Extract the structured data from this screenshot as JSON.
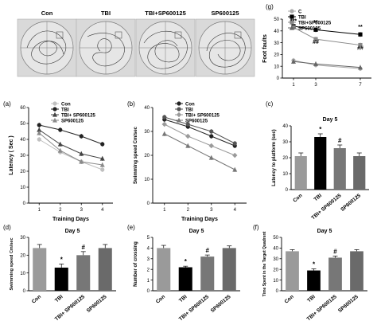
{
  "track_labels": [
    "Con",
    "TBI",
    "TBI+SP600125",
    "SP600125"
  ],
  "chart_data": [
    {
      "panel": "(a)",
      "type": "line",
      "ylabel": "Latency ( Sec )",
      "xlabel": "Training Days",
      "x": [
        1,
        2,
        3,
        4
      ],
      "xlim": [
        0.5,
        4.5
      ],
      "ylim": [
        0,
        60
      ],
      "yticks": [
        0,
        10,
        20,
        30,
        40,
        50,
        60
      ],
      "legend_position": "top-right",
      "series": [
        {
          "name": "Con",
          "values": [
            40,
            32,
            26,
            21
          ],
          "color": "#c0c0c0",
          "marker": "circle"
        },
        {
          "name": "TBI",
          "values": [
            49,
            46,
            42,
            37
          ],
          "color": "#222222",
          "marker": "circle"
        },
        {
          "name": "TBI+ SP600125",
          "values": [
            46,
            37,
            31,
            28
          ],
          "color": "#444444",
          "marker": "triangle"
        },
        {
          "name": "SP600125",
          "values": [
            44,
            33,
            26,
            24
          ],
          "color": "#8a8a8a",
          "marker": "triangle"
        }
      ]
    },
    {
      "panel": "(b)",
      "type": "line",
      "ylabel": "Swimming speed Cm/sec",
      "xlabel": "Training Days",
      "x": [
        1,
        2,
        3,
        4
      ],
      "xlim": [
        0.5,
        4.5
      ],
      "ylim": [
        0,
        40
      ],
      "yticks": [
        0,
        10,
        20,
        30,
        40
      ],
      "legend_position": "top-right",
      "series": [
        {
          "name": "Con",
          "values": [
            35,
            32,
            28,
            24
          ],
          "color": "#222222",
          "marker": "circle"
        },
        {
          "name": "TBI",
          "values": [
            36,
            33,
            30,
            25
          ],
          "color": "#555555",
          "marker": "circle"
        },
        {
          "name": "TBI+ SP600125",
          "values": [
            33,
            28,
            24,
            20
          ],
          "color": "#9a9a9a",
          "marker": "diamond"
        },
        {
          "name": "SP600125",
          "values": [
            29,
            24,
            19,
            14
          ],
          "color": "#777777",
          "marker": "triangle"
        }
      ]
    },
    {
      "panel": "(c)",
      "type": "bar",
      "title": "Day 5",
      "ylabel": "Latency to platform (sec)",
      "categories": [
        "Con",
        "TBI",
        "TBI+ SP600125",
        "SP600125"
      ],
      "values": [
        21,
        33,
        26,
        21
      ],
      "errors": [
        2,
        2,
        2,
        2
      ],
      "colors": [
        "#9a9a9a",
        "#000000",
        "#777777",
        "#6a6a6a"
      ],
      "annotations": [
        "",
        "*",
        "#",
        ""
      ],
      "ylim": [
        0,
        40
      ],
      "yticks": [
        0,
        10,
        20,
        30,
        40
      ]
    },
    {
      "panel": "(d)",
      "type": "bar",
      "title": "Day 5",
      "ylabel": "Swimming speed Cm/sec",
      "categories": [
        "Con",
        "TBI",
        "TBI+ SP600125",
        "SP600125"
      ],
      "values": [
        24,
        13,
        20,
        24
      ],
      "errors": [
        2,
        2,
        2,
        2
      ],
      "colors": [
        "#9a9a9a",
        "#000000",
        "#777777",
        "#6a6a6a"
      ],
      "annotations": [
        "",
        "*",
        "#",
        ""
      ],
      "ylim": [
        0,
        30
      ],
      "yticks": [
        0,
        10,
        20,
        30
      ]
    },
    {
      "panel": "(e)",
      "type": "bar",
      "title": "Day 5",
      "ylabel": "Number of crossing",
      "categories": [
        "Con",
        "TBI",
        "TBI+ SP600125",
        "SP600125"
      ],
      "values": [
        4.0,
        2.2,
        3.2,
        4.0
      ],
      "errors": [
        0.25,
        0.1,
        0.15,
        0.2
      ],
      "colors": [
        "#9a9a9a",
        "#000000",
        "#777777",
        "#6a6a6a"
      ],
      "annotations": [
        "",
        "*",
        "#",
        ""
      ],
      "ylim": [
        0,
        5
      ],
      "yticks": [
        0,
        1,
        2,
        3,
        4,
        5
      ]
    },
    {
      "panel": "(f)",
      "type": "bar",
      "title": "Day 5",
      "ylabel": "Time Spent in the Target Quadrent",
      "categories": [
        "Con",
        "TBI",
        "TBI+ SP600125",
        "SP600125"
      ],
      "values": [
        37,
        19,
        31,
        37
      ],
      "errors": [
        1.5,
        1.5,
        1.5,
        1.5
      ],
      "colors": [
        "#9a9a9a",
        "#000000",
        "#777777",
        "#6a6a6a"
      ],
      "annotations": [
        "",
        "*",
        "#",
        ""
      ],
      "ylim": [
        0,
        50
      ],
      "yticks": [
        0,
        10,
        20,
        30,
        40,
        50
      ]
    },
    {
      "panel": "(g)",
      "type": "line",
      "ylabel": "Foot faults",
      "x": [
        1,
        3,
        7
      ],
      "xlim": [
        0,
        8
      ],
      "ylim": [
        0,
        50
      ],
      "yticks": [
        0,
        10,
        20,
        30,
        40,
        50
      ],
      "legend_position": "top-left",
      "series": [
        {
          "name": "C",
          "values": [
            15,
            11,
            8
          ],
          "color": "#aaaaaa",
          "marker": "circle"
        },
        {
          "name": "TBI",
          "values": [
            44,
            41,
            37
          ],
          "color": "#000000",
          "marker": "square"
        },
        {
          "name": "TBI+SP600125",
          "values": [
            43,
            33,
            28
          ],
          "color": "#888888",
          "marker": "square"
        },
        {
          "name": "SP600125",
          "values": [
            14,
            12,
            9
          ],
          "color": "#666666",
          "marker": "triangle"
        }
      ],
      "annotations": [
        {
          "x": 1,
          "text": "***"
        },
        {
          "x": 3,
          "text": "**"
        },
        {
          "x": 7,
          "text": "**"
        },
        {
          "x": 3,
          "text": "##"
        },
        {
          "x": 7,
          "text": "##"
        }
      ]
    }
  ]
}
